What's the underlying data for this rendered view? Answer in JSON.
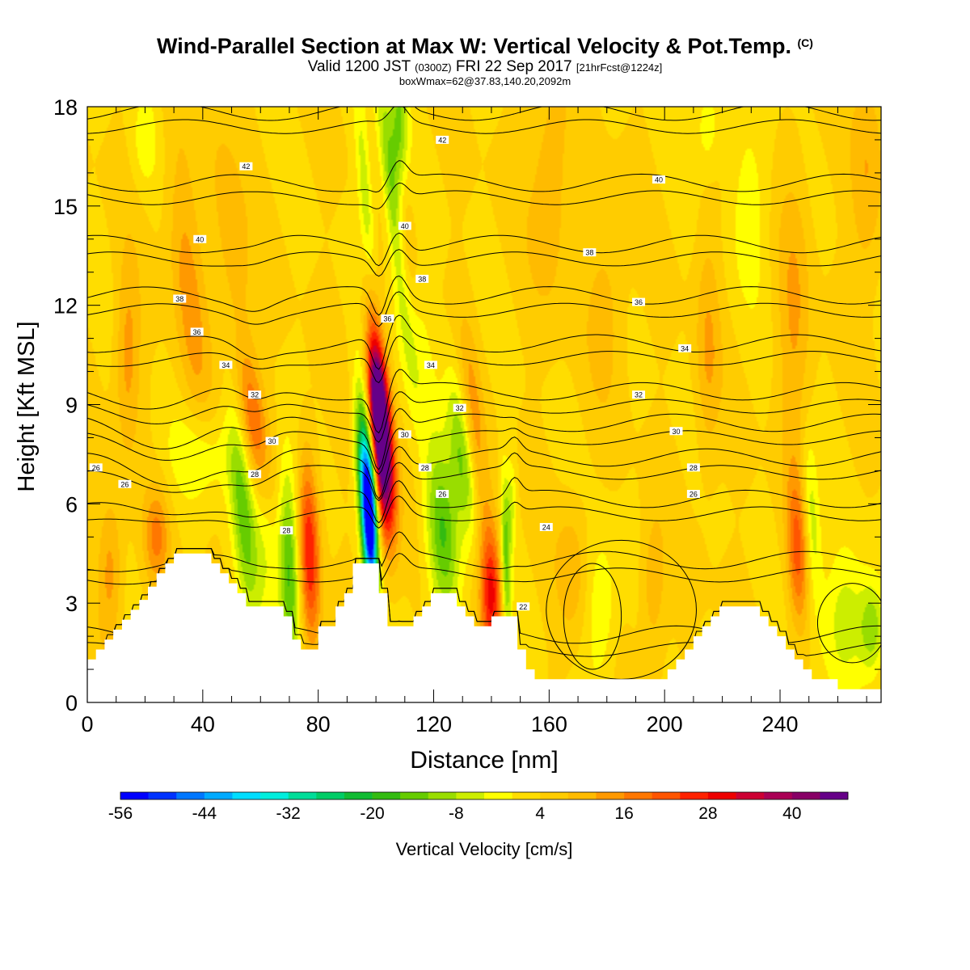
{
  "header": {
    "title": "Wind-Parallel Section at Max W: Vertical Velocity & Pot.Temp.",
    "title_mark": "(C)",
    "subtitle_main": "Valid 1200 JST",
    "subtitle_utc": "(0300Z)",
    "subtitle_date": "FRI 22 Sep 2017",
    "subtitle_fcst": "[21hrFcst@1224z]",
    "box_info": "boxWmax=62@37.83,140.20,2092m"
  },
  "chart_data": {
    "type": "heatmap",
    "title": "Wind-Parallel Section at Max W: Vertical Velocity & Pot.Temp.",
    "xlabel": "Distance [nm]",
    "ylabel": "Height [Kft MSL]",
    "xlim": [
      0,
      275
    ],
    "ylim": [
      0,
      18
    ],
    "x_ticks": [
      0,
      40,
      80,
      120,
      160,
      200,
      240
    ],
    "y_ticks": [
      0,
      3,
      6,
      9,
      12,
      15,
      18
    ],
    "colorbar": {
      "label": "Vertical Velocity [cm/s]",
      "min": -56,
      "max": 48,
      "step": 4,
      "tick_values": [
        -56,
        -44,
        -32,
        -20,
        -8,
        4,
        16,
        28,
        40
      ],
      "colors": [
        "#0000ff",
        "#0033ff",
        "#0077ff",
        "#00aaff",
        "#00ddff",
        "#00eedd",
        "#00dd99",
        "#00cc66",
        "#11bb33",
        "#33bb11",
        "#66cc00",
        "#99dd00",
        "#ccee00",
        "#ffff00",
        "#ffdd00",
        "#ffcc00",
        "#ffbb00",
        "#ff9900",
        "#ff7700",
        "#ff5500",
        "#ff2200",
        "#ee0000",
        "#cc0033",
        "#aa0055",
        "#880066",
        "#660088"
      ]
    },
    "background_w": 4,
    "terrain": [
      {
        "x": 0,
        "h": 1.3
      },
      {
        "x": 3,
        "h": 1.6
      },
      {
        "x": 6,
        "h": 1.9
      },
      {
        "x": 9,
        "h": 2.2
      },
      {
        "x": 12,
        "h": 2.5
      },
      {
        "x": 15,
        "h": 2.8
      },
      {
        "x": 18,
        "h": 3.1
      },
      {
        "x": 21,
        "h": 3.5
      },
      {
        "x": 24,
        "h": 3.9
      },
      {
        "x": 27,
        "h": 4.2
      },
      {
        "x": 30,
        "h": 4.5
      },
      {
        "x": 35,
        "h": 4.5
      },
      {
        "x": 40,
        "h": 4.5
      },
      {
        "x": 43,
        "h": 4.2
      },
      {
        "x": 46,
        "h": 3.9
      },
      {
        "x": 49,
        "h": 3.6
      },
      {
        "x": 52,
        "h": 3.3
      },
      {
        "x": 55,
        "h": 2.9
      },
      {
        "x": 60,
        "h": 2.9
      },
      {
        "x": 65,
        "h": 2.9
      },
      {
        "x": 68,
        "h": 2.6
      },
      {
        "x": 71,
        "h": 1.9
      },
      {
        "x": 74,
        "h": 1.6
      },
      {
        "x": 77,
        "h": 1.6
      },
      {
        "x": 80,
        "h": 2.3
      },
      {
        "x": 83,
        "h": 2.3
      },
      {
        "x": 86,
        "h": 2.9
      },
      {
        "x": 89,
        "h": 3.3
      },
      {
        "x": 92,
        "h": 4.2
      },
      {
        "x": 95,
        "h": 4.2
      },
      {
        "x": 98,
        "h": 4.2
      },
      {
        "x": 101,
        "h": 3.3
      },
      {
        "x": 104,
        "h": 2.3
      },
      {
        "x": 107,
        "h": 2.3
      },
      {
        "x": 110,
        "h": 2.3
      },
      {
        "x": 113,
        "h": 2.6
      },
      {
        "x": 116,
        "h": 2.9
      },
      {
        "x": 119,
        "h": 3.3
      },
      {
        "x": 122,
        "h": 3.3
      },
      {
        "x": 125,
        "h": 3.3
      },
      {
        "x": 128,
        "h": 2.9
      },
      {
        "x": 131,
        "h": 2.6
      },
      {
        "x": 134,
        "h": 2.3
      },
      {
        "x": 137,
        "h": 2.3
      },
      {
        "x": 140,
        "h": 2.6
      },
      {
        "x": 143,
        "h": 2.6
      },
      {
        "x": 146,
        "h": 2.6
      },
      {
        "x": 149,
        "h": 1.6
      },
      {
        "x": 152,
        "h": 1.0
      },
      {
        "x": 155,
        "h": 0.7
      },
      {
        "x": 160,
        "h": 0.7
      },
      {
        "x": 170,
        "h": 0.7
      },
      {
        "x": 180,
        "h": 0.7
      },
      {
        "x": 190,
        "h": 0.7
      },
      {
        "x": 198,
        "h": 0.7
      },
      {
        "x": 201,
        "h": 1.0
      },
      {
        "x": 204,
        "h": 1.3
      },
      {
        "x": 207,
        "h": 1.6
      },
      {
        "x": 210,
        "h": 2.0
      },
      {
        "x": 213,
        "h": 2.3
      },
      {
        "x": 216,
        "h": 2.6
      },
      {
        "x": 219,
        "h": 2.9
      },
      {
        "x": 225,
        "h": 2.9
      },
      {
        "x": 230,
        "h": 2.9
      },
      {
        "x": 233,
        "h": 2.6
      },
      {
        "x": 236,
        "h": 2.3
      },
      {
        "x": 239,
        "h": 2.0
      },
      {
        "x": 242,
        "h": 1.6
      },
      {
        "x": 245,
        "h": 1.3
      },
      {
        "x": 248,
        "h": 1.0
      },
      {
        "x": 251,
        "h": 0.7
      },
      {
        "x": 254,
        "h": 0.7
      },
      {
        "x": 257,
        "h": 0.7
      },
      {
        "x": 260,
        "h": 0.4
      },
      {
        "x": 265,
        "h": 0.4
      },
      {
        "x": 270,
        "h": 0.4
      },
      {
        "x": 275,
        "h": 0.4
      }
    ],
    "w_features": [
      {
        "x": 98,
        "z": 5.5,
        "w": -56,
        "sx": 1.8,
        "sz": 1.6,
        "tilt": -0.35
      },
      {
        "x": 96,
        "z": 7.0,
        "w": -30,
        "sx": 2.0,
        "sz": 1.8,
        "tilt": -0.6
      },
      {
        "x": 102.5,
        "z": 7.5,
        "w": 48,
        "sx": 2.6,
        "sz": 1.8,
        "tilt": -0.65
      },
      {
        "x": 100.5,
        "z": 9.2,
        "w": 30,
        "sx": 2.2,
        "sz": 1.2,
        "tilt": -0.5
      },
      {
        "x": 99,
        "z": 11.5,
        "w": 16,
        "sx": 2.0,
        "sz": 1.6,
        "tilt": -0.6
      },
      {
        "x": 97,
        "z": 14.5,
        "w": -12,
        "sx": 1.8,
        "sz": 3.0,
        "tilt": -0.8
      },
      {
        "x": 106,
        "z": 15.0,
        "w": -18,
        "sx": 2.2,
        "sz": 3.0,
        "tilt": -1.2
      },
      {
        "x": 108,
        "z": 17.5,
        "w": -16,
        "sx": 2.2,
        "sz": 1.5,
        "tilt": 0
      },
      {
        "x": 110,
        "z": 13.0,
        "w": 14,
        "sx": 3.0,
        "sz": 2.0,
        "tilt": -1.0
      },
      {
        "x": 112,
        "z": 11.5,
        "w": -12,
        "sx": 4.0,
        "sz": 2.0,
        "tilt": -1.2
      },
      {
        "x": 123,
        "z": 5.0,
        "w": -20,
        "sx": 4.0,
        "sz": 1.8,
        "tilt": -0.6
      },
      {
        "x": 130,
        "z": 7.5,
        "w": -16,
        "sx": 3.0,
        "sz": 1.8,
        "tilt": -1.2
      },
      {
        "x": 134,
        "z": 8.5,
        "w": 10,
        "sx": 2.5,
        "sz": 2.0,
        "tilt": -1.0
      },
      {
        "x": 70,
        "z": 4.0,
        "w": -22,
        "sx": 2.5,
        "sz": 2.2,
        "tilt": -0.3
      },
      {
        "x": 77,
        "z": 4.6,
        "w": 24,
        "sx": 2.5,
        "sz": 2.0,
        "tilt": -0.3
      },
      {
        "x": 54,
        "z": 5.8,
        "w": -18,
        "sx": 3.0,
        "sz": 2.2,
        "tilt": -0.9
      },
      {
        "x": 58,
        "z": 8.3,
        "w": 18,
        "sx": 3.5,
        "sz": 1.6,
        "tilt": -1.4
      },
      {
        "x": 62,
        "z": 5.5,
        "w": -8,
        "sx": 3.0,
        "sz": 2.0,
        "tilt": -0.5
      },
      {
        "x": 40,
        "z": 7.5,
        "w": -8,
        "sx": 8.0,
        "sz": 1.0,
        "tilt": -0.5
      },
      {
        "x": 35,
        "z": 12.5,
        "w": 10,
        "sx": 4.0,
        "sz": 3.0,
        "tilt": -1.0
      },
      {
        "x": 50,
        "z": 14.0,
        "w": 8,
        "sx": 4.0,
        "sz": 2.5,
        "tilt": -1.0
      },
      {
        "x": 20,
        "z": 17.0,
        "w": -6,
        "sx": 3.0,
        "sz": 1.0,
        "tilt": 0
      },
      {
        "x": 14,
        "z": 10.5,
        "w": 10,
        "sx": 3.0,
        "sz": 2.0,
        "tilt": 0
      },
      {
        "x": 8,
        "z": 4.0,
        "w": 10,
        "sx": 3.0,
        "sz": 1.5,
        "tilt": 0
      },
      {
        "x": 24,
        "z": 5.0,
        "w": 12,
        "sx": 3.0,
        "sz": 1.0,
        "tilt": 0
      },
      {
        "x": 140,
        "z": 3.0,
        "w": 20,
        "sx": 2.5,
        "sz": 1.2,
        "tilt": 0
      },
      {
        "x": 139,
        "z": 4.5,
        "w": 10,
        "sx": 3.0,
        "sz": 1.3,
        "tilt": -0.4
      },
      {
        "x": 145,
        "z": 4.3,
        "w": -18,
        "sx": 1.2,
        "sz": 1.8,
        "tilt": -0.2
      },
      {
        "x": 147,
        "z": 6.0,
        "w": -8,
        "sx": 1.2,
        "sz": 1.0,
        "tilt": 0
      },
      {
        "x": 178,
        "z": 2.8,
        "w": -8,
        "sx": 4.0,
        "sz": 1.6,
        "tilt": 0
      },
      {
        "x": 168,
        "z": 4.0,
        "w": 7,
        "sx": 4.0,
        "sz": 1.5,
        "tilt": 0
      },
      {
        "x": 196,
        "z": 3.5,
        "w": 8,
        "sx": 3.0,
        "sz": 1.5,
        "tilt": 0
      },
      {
        "x": 246,
        "z": 4.5,
        "w": 16,
        "sx": 2.5,
        "sz": 1.6,
        "tilt": -0.3
      },
      {
        "x": 251,
        "z": 5.5,
        "w": -12,
        "sx": 2.0,
        "sz": 1.8,
        "tilt": -0.6
      },
      {
        "x": 263,
        "z": 2.5,
        "w": -10,
        "sx": 6.0,
        "sz": 1.5,
        "tilt": 0
      },
      {
        "x": 272,
        "z": 2.2,
        "w": -14,
        "sx": 3.0,
        "sz": 1.0,
        "tilt": 0
      },
      {
        "x": 245,
        "z": 11.5,
        "w": 8,
        "sx": 4.0,
        "sz": 3.5,
        "tilt": 0
      },
      {
        "x": 230,
        "z": 15.0,
        "w": -6,
        "sx": 5.0,
        "sz": 2.0,
        "tilt": 0
      },
      {
        "x": 215,
        "z": 10.5,
        "w": 8,
        "sx": 3.0,
        "sz": 2.5,
        "tilt": 0
      },
      {
        "x": 160,
        "z": 15.5,
        "w": 8,
        "sx": 5.0,
        "sz": 2.5,
        "tilt": 0
      },
      {
        "x": 180,
        "z": 12.0,
        "w": 6,
        "sx": 5.0,
        "sz": 2.0,
        "tilt": 0
      },
      {
        "x": 215,
        "z": 17.5,
        "w": -8,
        "sx": 3.0,
        "sz": 1.0,
        "tilt": 0
      },
      {
        "x": 270,
        "z": 16.0,
        "w": 8,
        "sx": 4.0,
        "sz": 2.5,
        "tilt": 0
      }
    ],
    "theta_contours": [
      {
        "label": "22",
        "h": 1.6
      },
      {
        "label": "24",
        "h": 3.8
      },
      {
        "label": "26",
        "h": 5.7
      },
      {
        "label": "28",
        "h": 6.9
      },
      {
        "label": "30",
        "h": 8.0
      },
      {
        "label": "32",
        "h": 8.9
      },
      {
        "label": "34",
        "h": 10.4
      },
      {
        "label": "36",
        "h": 11.8
      },
      {
        "label": "38",
        "h": 13.4
      },
      {
        "label": "40",
        "h": 15.2
      },
      {
        "label": "42",
        "h": 17.4
      }
    ],
    "contour_labels": [
      {
        "text": "26",
        "x": 3,
        "z": 7.1
      },
      {
        "text": "26",
        "x": 13,
        "z": 6.6
      },
      {
        "text": "28",
        "x": 58,
        "z": 6.9
      },
      {
        "text": "30",
        "x": 64,
        "z": 7.9
      },
      {
        "text": "32",
        "x": 58,
        "z": 9.3
      },
      {
        "text": "34",
        "x": 48,
        "z": 10.2
      },
      {
        "text": "36",
        "x": 38,
        "z": 11.2
      },
      {
        "text": "38",
        "x": 32,
        "z": 12.2
      },
      {
        "text": "40",
        "x": 39,
        "z": 14.0
      },
      {
        "text": "42",
        "x": 55,
        "z": 16.2
      },
      {
        "text": "28",
        "x": 69,
        "z": 5.2
      },
      {
        "text": "30",
        "x": 110,
        "z": 8.1
      },
      {
        "text": "28",
        "x": 117,
        "z": 7.1
      },
      {
        "text": "26",
        "x": 123,
        "z": 6.3
      },
      {
        "text": "24",
        "x": 159,
        "z": 5.3
      },
      {
        "text": "22",
        "x": 151,
        "z": 2.9
      },
      {
        "text": "32",
        "x": 129,
        "z": 8.9
      },
      {
        "text": "34",
        "x": 119,
        "z": 10.2
      },
      {
        "text": "36",
        "x": 104,
        "z": 11.6
      },
      {
        "text": "38",
        "x": 116,
        "z": 12.8
      },
      {
        "text": "40",
        "x": 110,
        "z": 14.4
      },
      {
        "text": "42",
        "x": 123,
        "z": 17.0
      },
      {
        "text": "26",
        "x": 210,
        "z": 6.3
      },
      {
        "text": "28",
        "x": 210,
        "z": 7.1
      },
      {
        "text": "30",
        "x": 204,
        "z": 8.2
      },
      {
        "text": "32",
        "x": 191,
        "z": 9.3
      },
      {
        "text": "34",
        "x": 207,
        "z": 10.7
      },
      {
        "text": "36",
        "x": 191,
        "z": 12.1
      },
      {
        "text": "38",
        "x": 174,
        "z": 13.6
      },
      {
        "text": "40",
        "x": 198,
        "z": 15.8
      }
    ]
  }
}
